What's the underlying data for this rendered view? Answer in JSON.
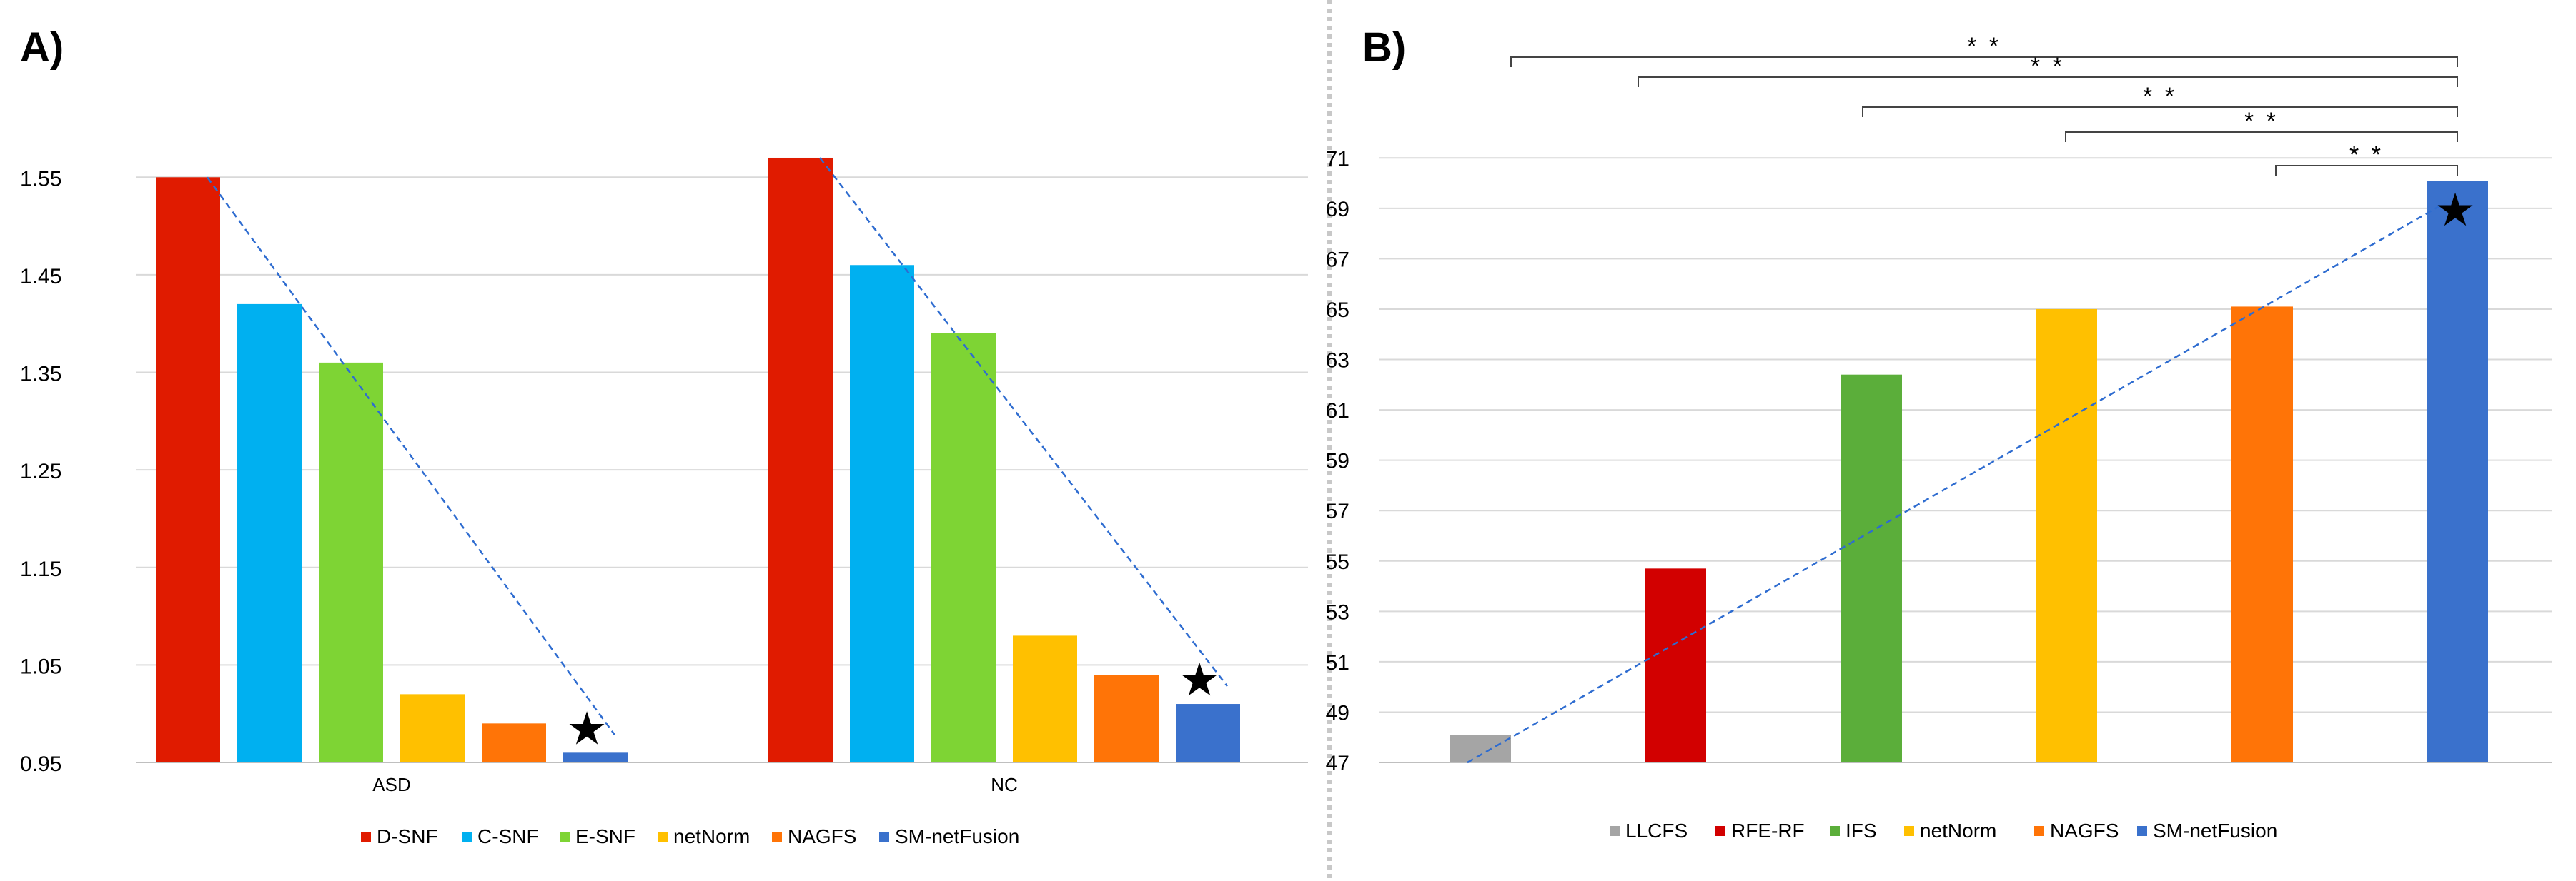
{
  "chart_data": [
    {
      "type": "bar",
      "panel_label": "A)",
      "categories": [
        "ASD",
        "NC"
      ],
      "series": [
        {
          "name": "D-SNF",
          "color": "#E01B00",
          "values": [
            1.55,
            1.57
          ]
        },
        {
          "name": "C-SNF",
          "color": "#00B0F0",
          "values": [
            1.42,
            1.46
          ]
        },
        {
          "name": "E-SNF",
          "color": "#7ED434",
          "values": [
            1.36,
            1.39
          ]
        },
        {
          "name": "netNorm",
          "color": "#FFC000",
          "values": [
            1.02,
            1.08
          ]
        },
        {
          "name": "NAGFS",
          "color": "#FF7407",
          "values": [
            0.99,
            1.04
          ]
        },
        {
          "name": "SM-netFusion",
          "color": "#3A71CC",
          "values": [
            0.96,
            1.01
          ]
        }
      ],
      "ylim": [
        0.95,
        1.6
      ],
      "yticks": [
        "0.95",
        "1.05",
        "1.15",
        "1.25",
        "1.35",
        "1.45",
        "1.55"
      ],
      "ytick_values": [
        0.95,
        1.05,
        1.15,
        1.25,
        1.35,
        1.45,
        1.55
      ],
      "trendline_color": "#2E6CD0",
      "star_marks": [
        "★",
        "★"
      ],
      "grid": true,
      "legend": "bottom"
    },
    {
      "type": "bar",
      "panel_label": "B)",
      "categories": [
        "LLCFS",
        "RFE-RF",
        "IFS",
        "netNorm",
        "NAGFS",
        "SM-netFusion"
      ],
      "values": [
        48.1,
        54.7,
        62.4,
        65.0,
        65.1,
        70.1
      ],
      "colors": [
        "#A5A5A5",
        "#D20000",
        "#5BAE3A",
        "#FFC000",
        "#FF7407",
        "#3A71CC"
      ],
      "ylim": [
        47,
        72
      ],
      "yticks": [
        "47",
        "49",
        "51",
        "53",
        "55",
        "57",
        "59",
        "61",
        "63",
        "65",
        "67",
        "69",
        "71"
      ],
      "ytick_values": [
        47,
        49,
        51,
        53,
        55,
        57,
        59,
        61,
        63,
        65,
        67,
        69,
        71
      ],
      "trendline_color": "#2E6CD0",
      "star_mark": "★",
      "significance_marks": [
        "* *",
        "* *",
        "* *",
        "* *",
        "* *"
      ],
      "grid": true,
      "legend": "bottom"
    }
  ]
}
